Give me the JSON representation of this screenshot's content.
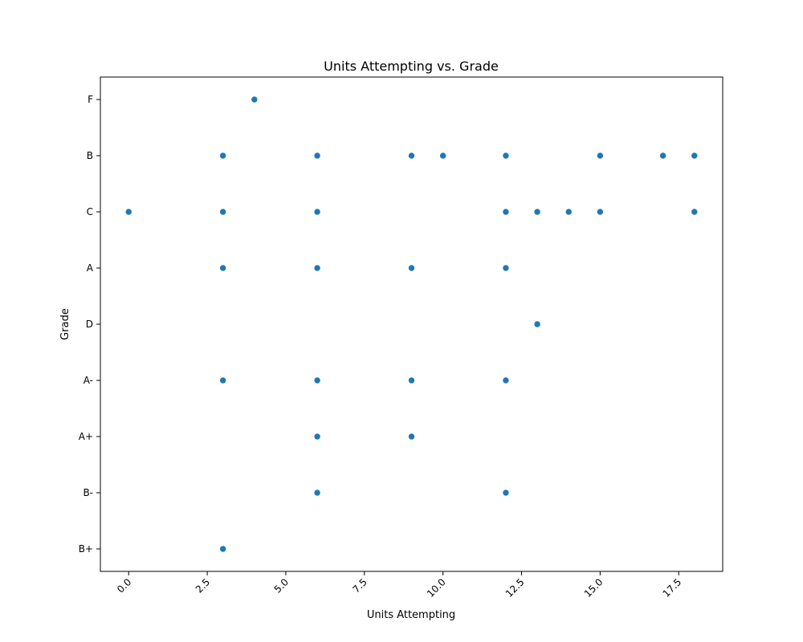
{
  "chart_data": {
    "type": "scatter",
    "title": "Units Attempting vs. Grade",
    "xlabel": "Units Attempting",
    "ylabel": "Grade",
    "xlim": [
      -0.9,
      18.9
    ],
    "xticks": [
      "0.0",
      "2.5",
      "5.0",
      "7.5",
      "10.0",
      "12.5",
      "15.0",
      "17.5"
    ],
    "y_categories": [
      "F",
      "B",
      "C",
      "A",
      "D",
      "A-",
      "A+",
      "B-",
      "B+"
    ],
    "grid": false,
    "color": "#1f77b4",
    "points": [
      {
        "x": 4,
        "y": "F"
      },
      {
        "x": 3,
        "y": "B"
      },
      {
        "x": 6,
        "y": "B"
      },
      {
        "x": 9,
        "y": "B"
      },
      {
        "x": 10,
        "y": "B"
      },
      {
        "x": 12,
        "y": "B"
      },
      {
        "x": 15,
        "y": "B"
      },
      {
        "x": 17,
        "y": "B"
      },
      {
        "x": 18,
        "y": "B"
      },
      {
        "x": 0,
        "y": "C"
      },
      {
        "x": 3,
        "y": "C"
      },
      {
        "x": 6,
        "y": "C"
      },
      {
        "x": 12,
        "y": "C"
      },
      {
        "x": 13,
        "y": "C"
      },
      {
        "x": 14,
        "y": "C"
      },
      {
        "x": 15,
        "y": "C"
      },
      {
        "x": 18,
        "y": "C"
      },
      {
        "x": 3,
        "y": "A"
      },
      {
        "x": 6,
        "y": "A"
      },
      {
        "x": 9,
        "y": "A"
      },
      {
        "x": 12,
        "y": "A"
      },
      {
        "x": 13,
        "y": "D"
      },
      {
        "x": 3,
        "y": "A-"
      },
      {
        "x": 6,
        "y": "A-"
      },
      {
        "x": 9,
        "y": "A-"
      },
      {
        "x": 12,
        "y": "A-"
      },
      {
        "x": 6,
        "y": "A+"
      },
      {
        "x": 9,
        "y": "A+"
      },
      {
        "x": 6,
        "y": "B-"
      },
      {
        "x": 12,
        "y": "B-"
      },
      {
        "x": 3,
        "y": "B+"
      }
    ]
  }
}
